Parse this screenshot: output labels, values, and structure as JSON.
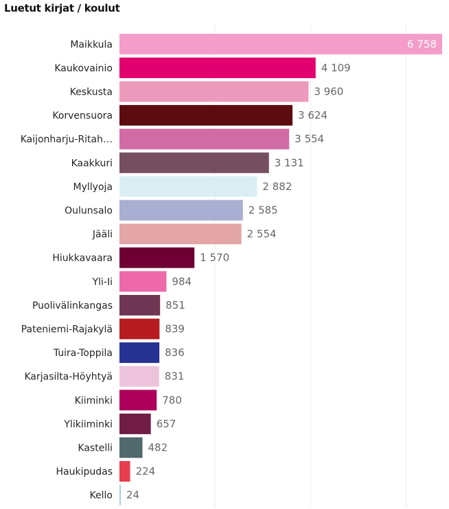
{
  "chart_data": {
    "type": "bar",
    "orientation": "horizontal",
    "title": "Luetut kirjat / koulut",
    "xlim": [
      0,
      6758
    ],
    "gridlines": [
      0,
      2000,
      4000,
      6000
    ],
    "categories": [
      "Maikkula",
      "Kaukovainio",
      "Keskusta",
      "Korvensuora",
      "Kaijonharju-Ritah…",
      "Kaakkuri",
      "Myllyoja",
      "Oulunsalo",
      "Jääli",
      "Hiukkavaara",
      "Yli-Ii",
      "Puolivälinkangas",
      "Pateniemi-Rajakylä",
      "Tuira-Toppila",
      "Karjasilta-Höyhtyä",
      "Kiiminki",
      "Ylikiiminki",
      "Kastelli",
      "Haukipudas",
      "Kello"
    ],
    "values": [
      6758,
      4109,
      3960,
      3624,
      3554,
      3131,
      2882,
      2585,
      2554,
      1570,
      984,
      851,
      839,
      836,
      831,
      780,
      657,
      482,
      224,
      24
    ],
    "value_labels": [
      "6 758",
      "4 109",
      "3 960",
      "3 624",
      "3 554",
      "3 131",
      "2 882",
      "2 585",
      "2 554",
      "1 570",
      "984",
      "851",
      "839",
      "836",
      "831",
      "780",
      "657",
      "482",
      "224",
      "24"
    ],
    "colors": [
      "#F39DC8",
      "#E2006F",
      "#EC9BBD",
      "#5C0B0E",
      "#D16BA5",
      "#754F60",
      "#DAEEF4",
      "#A9AED2",
      "#E3A5A5",
      "#6F0033",
      "#EE69AA",
      "#6E3653",
      "#B51B1F",
      "#263292",
      "#EDC3DC",
      "#AD005A",
      "#711C45",
      "#52696C",
      "#E63D4F",
      "#A9CEE8"
    ]
  }
}
